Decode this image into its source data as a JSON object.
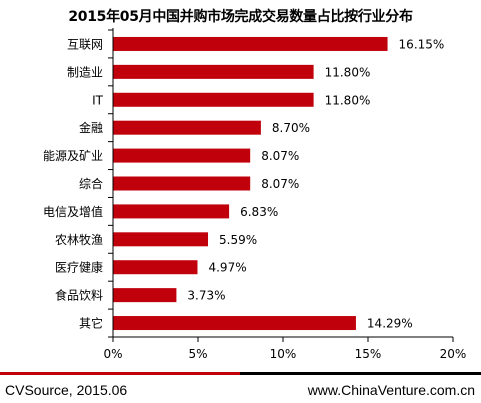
{
  "chart_data": {
    "type": "bar",
    "orientation": "horizontal",
    "title": "2015年05月中国并购市场完成交易数量占比按行业分布",
    "categories": [
      "互联网",
      "制造业",
      "IT",
      "金融",
      "能源及矿业",
      "综合",
      "电信及增值",
      "农林牧渔",
      "医疗健康",
      "食品饮料",
      "其它"
    ],
    "values": [
      16.15,
      11.8,
      11.8,
      8.7,
      8.07,
      8.07,
      6.83,
      5.59,
      4.97,
      3.73,
      14.29
    ],
    "value_labels": [
      "16.15%",
      "11.80%",
      "11.80%",
      "8.70%",
      "8.07%",
      "8.07%",
      "6.83%",
      "5.59%",
      "4.97%",
      "3.73%",
      "14.29%"
    ],
    "xlim": [
      0,
      20
    ],
    "x_ticks": [
      0,
      5,
      10,
      15,
      20
    ],
    "x_tick_labels": [
      "0%",
      "5%",
      "10%",
      "15%",
      "20%"
    ],
    "xlabel": "",
    "ylabel": "",
    "grid": false,
    "legend": "none",
    "bar_color": "#c0000b"
  },
  "footer": {
    "source": "CVSource, 2015.06",
    "website": "www.ChinaVenture.com.cn",
    "accent_color": "#c0000b"
  }
}
